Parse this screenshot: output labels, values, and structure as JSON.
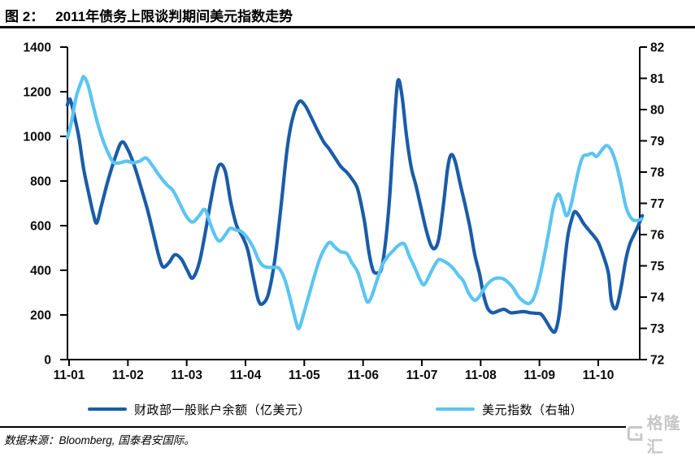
{
  "page": {
    "figure_label": "图 2：",
    "title": "2011年债务上限谈判期间美元指数走势",
    "source_note": "数据来源：Bloomberg, 国泰君安国际。",
    "logo_text": "格隆汇"
  },
  "legend": {
    "items": [
      {
        "label": "财政部一般账户余额（亿美元）",
        "color": "#1A5CA8"
      },
      {
        "label": "美元指数（右轴）",
        "color": "#5BC5F2"
      }
    ]
  },
  "chart_data": {
    "type": "line",
    "title": "2011年债务上限谈判期间美元指数走势",
    "grid": false,
    "legend_position": "bottom",
    "x_axis": {
      "tick_labels": [
        "11-01",
        "11-02",
        "11-03",
        "11-04",
        "11-05",
        "11-06",
        "11-07",
        "11-08",
        "11-09",
        "11-10"
      ],
      "x_range": [
        0.97,
        10.75
      ]
    },
    "left_axis": {
      "ticks": [
        0,
        200,
        400,
        600,
        800,
        1000,
        1200,
        1400
      ],
      "range": [
        0,
        1400
      ],
      "series_label": "财政部一般账户余额（亿美元）"
    },
    "right_axis": {
      "ticks": [
        72,
        73,
        74,
        75,
        76,
        77,
        78,
        79,
        80,
        81,
        82
      ],
      "range": [
        72,
        82
      ],
      "series_label": "美元指数（右轴）"
    },
    "series": [
      {
        "name": "财政部一般账户余额（亿美元）",
        "axis": "left",
        "color": "#1A5CA8",
        "points": [
          [
            0.97,
            1140
          ],
          [
            1.02,
            1165
          ],
          [
            1.1,
            1080
          ],
          [
            1.17,
            990
          ],
          [
            1.25,
            850
          ],
          [
            1.35,
            725
          ],
          [
            1.41,
            655
          ],
          [
            1.47,
            612
          ],
          [
            1.55,
            690
          ],
          [
            1.66,
            800
          ],
          [
            1.79,
            910
          ],
          [
            1.9,
            975
          ],
          [
            2.01,
            935
          ],
          [
            2.12,
            860
          ],
          [
            2.23,
            765
          ],
          [
            2.34,
            665
          ],
          [
            2.45,
            545
          ],
          [
            2.53,
            460
          ],
          [
            2.6,
            415
          ],
          [
            2.7,
            435
          ],
          [
            2.8,
            470
          ],
          [
            2.91,
            450
          ],
          [
            3.01,
            400
          ],
          [
            3.1,
            365
          ],
          [
            3.21,
            430
          ],
          [
            3.31,
            560
          ],
          [
            3.41,
            710
          ],
          [
            3.5,
            830
          ],
          [
            3.57,
            875
          ],
          [
            3.66,
            840
          ],
          [
            3.75,
            705
          ],
          [
            3.85,
            600
          ],
          [
            3.95,
            550
          ],
          [
            4.04,
            490
          ],
          [
            4.14,
            360
          ],
          [
            4.22,
            265
          ],
          [
            4.29,
            250
          ],
          [
            4.39,
            295
          ],
          [
            4.5,
            450
          ],
          [
            4.61,
            700
          ],
          [
            4.71,
            945
          ],
          [
            4.8,
            1080
          ],
          [
            4.91,
            1155
          ],
          [
            5.01,
            1140
          ],
          [
            5.11,
            1090
          ],
          [
            5.22,
            1030
          ],
          [
            5.33,
            975
          ],
          [
            5.42,
            945
          ],
          [
            5.52,
            905
          ],
          [
            5.62,
            865
          ],
          [
            5.72,
            840
          ],
          [
            5.81,
            810
          ],
          [
            5.9,
            770
          ],
          [
            5.96,
            705
          ],
          [
            6.03,
            610
          ],
          [
            6.1,
            480
          ],
          [
            6.17,
            400
          ],
          [
            6.24,
            388
          ],
          [
            6.31,
            405
          ],
          [
            6.38,
            520
          ],
          [
            6.45,
            720
          ],
          [
            6.52,
            1010
          ],
          [
            6.59,
            1245
          ],
          [
            6.66,
            1185
          ],
          [
            6.74,
            1000
          ],
          [
            6.82,
            860
          ],
          [
            6.9,
            780
          ],
          [
            6.99,
            675
          ],
          [
            7.07,
            585
          ],
          [
            7.15,
            515
          ],
          [
            7.22,
            498
          ],
          [
            7.29,
            545
          ],
          [
            7.37,
            700
          ],
          [
            7.44,
            860
          ],
          [
            7.5,
            918
          ],
          [
            7.57,
            885
          ],
          [
            7.65,
            790
          ],
          [
            7.73,
            700
          ],
          [
            7.82,
            590
          ],
          [
            7.9,
            470
          ],
          [
            7.98,
            385
          ],
          [
            8.05,
            290
          ],
          [
            8.12,
            230
          ],
          [
            8.2,
            210
          ],
          [
            8.3,
            218
          ],
          [
            8.4,
            225
          ],
          [
            8.51,
            210
          ],
          [
            8.62,
            212
          ],
          [
            8.73,
            215
          ],
          [
            8.84,
            210
          ],
          [
            8.95,
            207
          ],
          [
            9.03,
            203
          ],
          [
            9.12,
            170
          ],
          [
            9.2,
            135
          ],
          [
            9.27,
            128
          ],
          [
            9.34,
            210
          ],
          [
            9.41,
            390
          ],
          [
            9.48,
            550
          ],
          [
            9.55,
            630
          ],
          [
            9.6,
            663
          ],
          [
            9.67,
            645
          ],
          [
            9.75,
            610
          ],
          [
            9.84,
            580
          ],
          [
            9.92,
            555
          ],
          [
            10.0,
            525
          ],
          [
            10.08,
            470
          ],
          [
            10.17,
            390
          ],
          [
            10.22,
            270
          ],
          [
            10.28,
            228
          ],
          [
            10.33,
            250
          ],
          [
            10.4,
            340
          ],
          [
            10.47,
            450
          ],
          [
            10.54,
            520
          ],
          [
            10.61,
            560
          ],
          [
            10.68,
            600
          ],
          [
            10.75,
            645
          ]
        ]
      },
      {
        "name": "美元指数（右轴）",
        "axis": "right",
        "color": "#5BC5F2",
        "points": [
          [
            0.97,
            79.1
          ],
          [
            1.04,
            79.6
          ],
          [
            1.12,
            80.4
          ],
          [
            1.21,
            80.9
          ],
          [
            1.25,
            81.05
          ],
          [
            1.32,
            80.8
          ],
          [
            1.4,
            80.2
          ],
          [
            1.48,
            79.6
          ],
          [
            1.58,
            79.0
          ],
          [
            1.68,
            78.55
          ],
          [
            1.76,
            78.3
          ],
          [
            1.87,
            78.3
          ],
          [
            1.98,
            78.35
          ],
          [
            2.09,
            78.3
          ],
          [
            2.2,
            78.35
          ],
          [
            2.31,
            78.45
          ],
          [
            2.42,
            78.2
          ],
          [
            2.53,
            77.9
          ],
          [
            2.66,
            77.6
          ],
          [
            2.77,
            77.4
          ],
          [
            2.88,
            77.0
          ],
          [
            2.99,
            76.6
          ],
          [
            3.1,
            76.4
          ],
          [
            3.21,
            76.6
          ],
          [
            3.31,
            76.8
          ],
          [
            3.41,
            76.3
          ],
          [
            3.5,
            75.9
          ],
          [
            3.57,
            75.8
          ],
          [
            3.66,
            76.0
          ],
          [
            3.74,
            76.2
          ],
          [
            3.83,
            76.15
          ],
          [
            3.93,
            76.1
          ],
          [
            4.03,
            75.9
          ],
          [
            4.13,
            75.6
          ],
          [
            4.22,
            75.2
          ],
          [
            4.3,
            75.0
          ],
          [
            4.4,
            74.95
          ],
          [
            4.5,
            74.95
          ],
          [
            4.58,
            74.9
          ],
          [
            4.68,
            74.5
          ],
          [
            4.78,
            73.8
          ],
          [
            4.86,
            73.2
          ],
          [
            4.91,
            73.0
          ],
          [
            4.98,
            73.4
          ],
          [
            5.07,
            74.0
          ],
          [
            5.16,
            74.6
          ],
          [
            5.26,
            75.2
          ],
          [
            5.36,
            75.6
          ],
          [
            5.44,
            75.75
          ],
          [
            5.52,
            75.6
          ],
          [
            5.62,
            75.45
          ],
          [
            5.72,
            75.4
          ],
          [
            5.81,
            75.1
          ],
          [
            5.91,
            74.8
          ],
          [
            5.99,
            74.3
          ],
          [
            6.07,
            73.85
          ],
          [
            6.14,
            74.0
          ],
          [
            6.23,
            74.5
          ],
          [
            6.32,
            75.0
          ],
          [
            6.42,
            75.3
          ],
          [
            6.52,
            75.5
          ],
          [
            6.6,
            75.65
          ],
          [
            6.7,
            75.7
          ],
          [
            6.79,
            75.3
          ],
          [
            6.89,
            74.9
          ],
          [
            6.97,
            74.55
          ],
          [
            7.04,
            74.4
          ],
          [
            7.13,
            74.7
          ],
          [
            7.21,
            75.0
          ],
          [
            7.29,
            75.2
          ],
          [
            7.37,
            75.15
          ],
          [
            7.46,
            75.05
          ],
          [
            7.54,
            74.9
          ],
          [
            7.62,
            74.7
          ],
          [
            7.71,
            74.5
          ],
          [
            7.79,
            74.15
          ],
          [
            7.89,
            73.9
          ],
          [
            7.97,
            74.0
          ],
          [
            8.07,
            74.3
          ],
          [
            8.16,
            74.5
          ],
          [
            8.26,
            74.6
          ],
          [
            8.36,
            74.6
          ],
          [
            8.45,
            74.5
          ],
          [
            8.55,
            74.3
          ],
          [
            8.65,
            74.0
          ],
          [
            8.74,
            73.85
          ],
          [
            8.83,
            73.8
          ],
          [
            8.91,
            74.0
          ],
          [
            8.99,
            74.5
          ],
          [
            9.08,
            75.3
          ],
          [
            9.16,
            76.1
          ],
          [
            9.24,
            76.9
          ],
          [
            9.32,
            77.3
          ],
          [
            9.39,
            77.0
          ],
          [
            9.46,
            76.6
          ],
          [
            9.53,
            76.9
          ],
          [
            9.6,
            77.5
          ],
          [
            9.67,
            78.1
          ],
          [
            9.74,
            78.5
          ],
          [
            9.82,
            78.55
          ],
          [
            9.9,
            78.6
          ],
          [
            9.97,
            78.5
          ],
          [
            10.06,
            78.7
          ],
          [
            10.14,
            78.85
          ],
          [
            10.22,
            78.7
          ],
          [
            10.3,
            78.3
          ],
          [
            10.39,
            77.6
          ],
          [
            10.47,
            76.9
          ],
          [
            10.55,
            76.55
          ],
          [
            10.63,
            76.45
          ],
          [
            10.74,
            76.5
          ]
        ]
      }
    ]
  }
}
